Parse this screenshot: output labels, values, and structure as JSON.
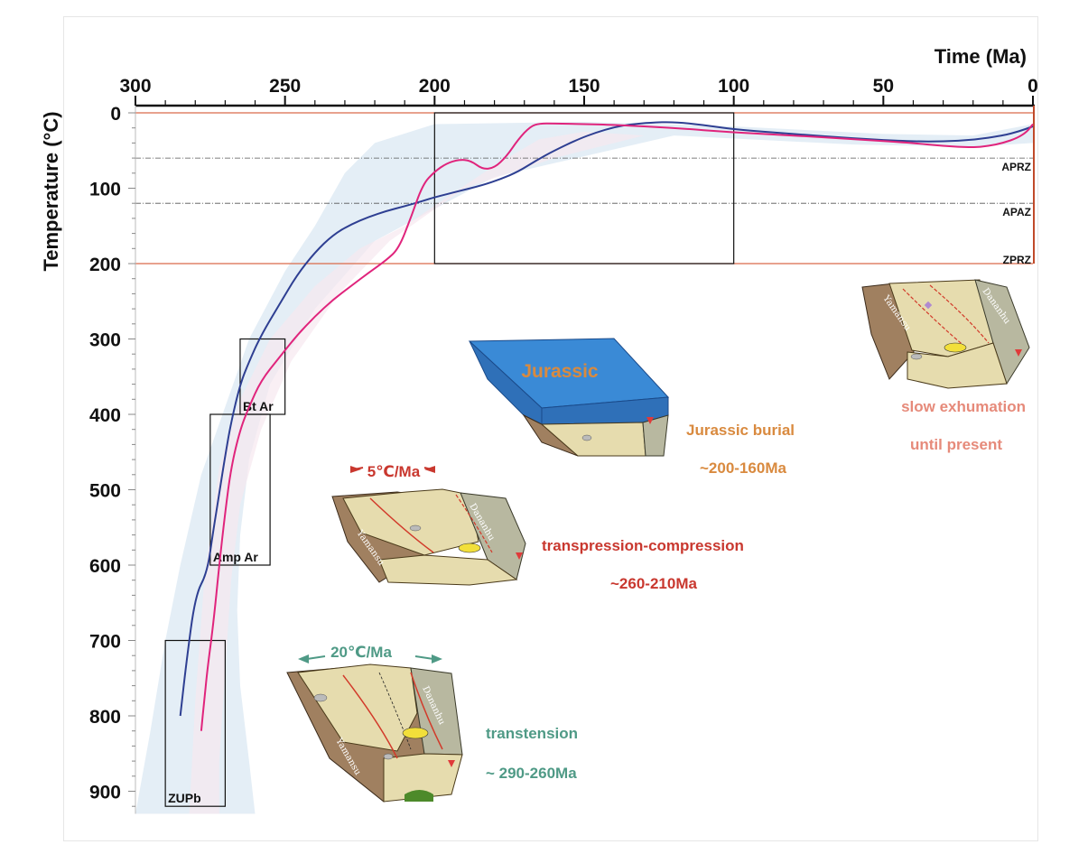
{
  "chart_data": {
    "type": "line",
    "xlabel": "Time (Ma)",
    "ylabel": "Temperature (°C)",
    "xlim": [
      300,
      0
    ],
    "ylim": [
      0,
      930
    ],
    "x_ticks": [
      300,
      250,
      200,
      150,
      100,
      50,
      0
    ],
    "y_ticks": [
      0,
      100,
      200,
      300,
      400,
      500,
      600,
      700,
      800,
      900
    ],
    "grid": false,
    "reference_lines": [
      {
        "label": "APRZ",
        "y": 60,
        "style": "dash-dot",
        "color": "#555555"
      },
      {
        "label": "APAZ",
        "y": 120,
        "style": "dash-dot",
        "color": "#555555"
      },
      {
        "label": "ZPRZ",
        "y": 200,
        "style": "solid",
        "color": "#d96a4a"
      }
    ],
    "constraint_boxes": [
      {
        "label": "ZUPb",
        "x": [
          290,
          270
        ],
        "y": [
          700,
          920
        ]
      },
      {
        "label": "Amp Ar",
        "x": [
          275,
          255
        ],
        "y": [
          400,
          600
        ]
      },
      {
        "label": "Bt  Ar",
        "x": [
          265,
          250
        ],
        "y": [
          300,
          400
        ]
      },
      {
        "label": "",
        "x": [
          200,
          100
        ],
        "y": [
          0,
          200
        ]
      }
    ],
    "series": [
      {
        "color": "#2e3f92",
        "x": [
          285,
          283,
          280,
          276,
          274,
          272,
          270,
          268,
          265,
          262,
          258,
          252,
          246,
          240,
          234,
          228,
          222,
          216,
          210,
          204,
          200,
          192,
          184,
          178,
          172,
          166,
          160,
          152,
          146,
          140,
          134,
          128,
          120,
          110,
          100,
          80,
          60,
          40,
          30,
          20,
          10,
          5,
          0
        ],
        "y": [
          800,
          730,
          640,
          610,
          555,
          505,
          455,
          410,
          360,
          330,
          295,
          255,
          215,
          185,
          162,
          148,
          138,
          130,
          124,
          117,
          112,
          104,
          96,
          88,
          78,
          63,
          50,
          35,
          26,
          19,
          15,
          13,
          12,
          16,
          22,
          28,
          34,
          38,
          38,
          36,
          30,
          25,
          18
        ]
      },
      {
        "color": "#e0247c",
        "x": [
          278,
          277,
          276,
          274,
          272,
          270,
          268,
          265,
          262,
          258,
          252,
          246,
          240,
          234,
          228,
          222,
          216,
          212,
          208,
          204,
          200,
          196,
          192,
          188,
          184,
          180,
          176,
          172,
          168,
          165,
          160,
          150,
          140,
          120,
          100,
          80,
          60,
          40,
          30,
          20,
          15,
          10,
          5,
          2,
          0
        ],
        "y": [
          820,
          780,
          740,
          680,
          600,
          530,
          470,
          420,
          390,
          355,
          325,
          295,
          270,
          248,
          230,
          212,
          195,
          180,
          140,
          95,
          78,
          67,
          62,
          63,
          75,
          73,
          58,
          35,
          18,
          14,
          14,
          15,
          16,
          20,
          26,
          30,
          35,
          40,
          44,
          46,
          44,
          40,
          33,
          25,
          15
        ]
      }
    ]
  },
  "annotations": {
    "stage1": {
      "rate": "20℃/Ma",
      "name": "transtension",
      "period": "~ 290-260Ma"
    },
    "stage2": {
      "rate": "5℃/Ma",
      "name": "transpression-compression",
      "period": "~260-210Ma"
    },
    "stage3": {
      "block_text": "Jurassic",
      "name": "Jurassic burial",
      "period": "~200-160Ma"
    },
    "stage4": {
      "name": "slow exhumation",
      "period": "until present"
    },
    "fault_names": [
      "Yamansu",
      "Dananhu"
    ],
    "colors": {
      "stage1": "#4f9a86",
      "stage2": "#c9382f",
      "stage3": "#d98a3f",
      "stage4": "#e68a7a"
    }
  }
}
